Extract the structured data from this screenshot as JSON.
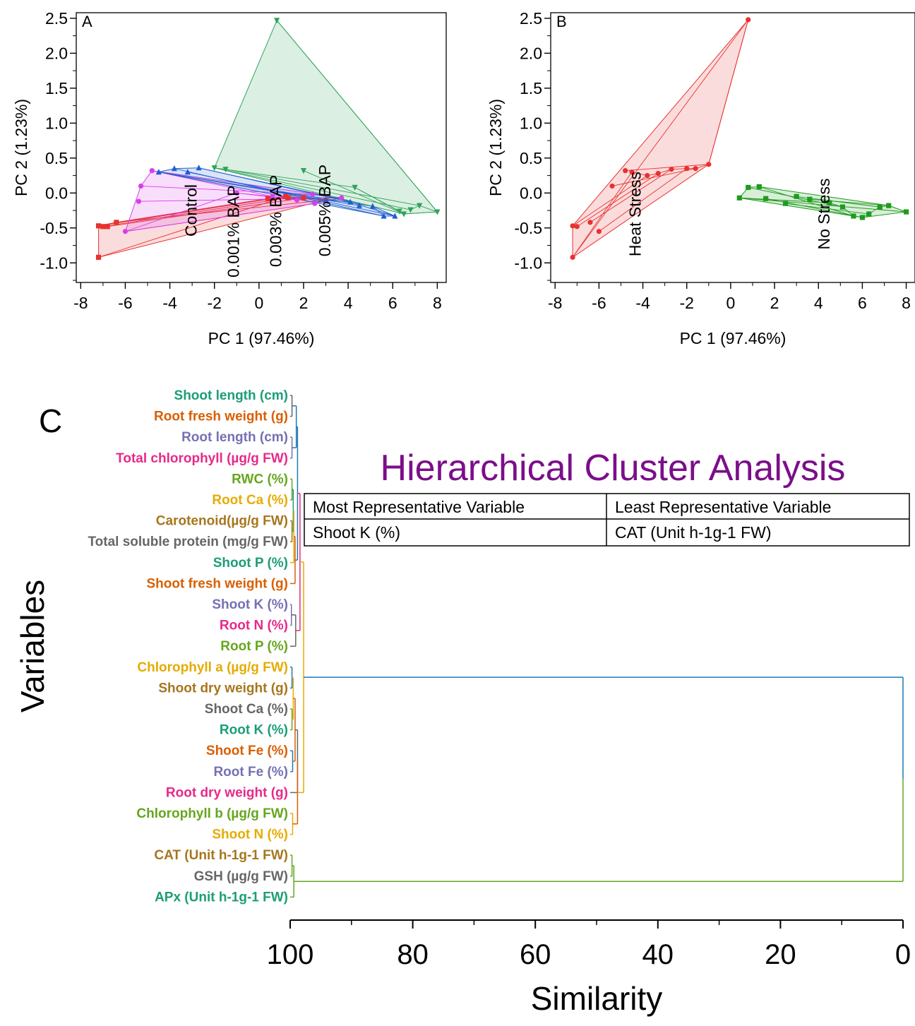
{
  "colors": {
    "control": "#e8312f",
    "bap001": "#d93ee8",
    "bap003": "#1f5fcf",
    "bap005": "#2fa35a",
    "heat": "#e8312f",
    "nostress": "#1e9b1e",
    "title": "#7b0e8a"
  },
  "chart_data": [
    {
      "type": "scatter",
      "panel_label": "A",
      "xlabel": "PC 1 (97.46%)",
      "ylabel": "PC 2 (1.23%)",
      "xlim": [
        -8.2,
        8.4
      ],
      "ylim": [
        -1.28,
        2.58
      ],
      "xticks": [
        "-8",
        "-6",
        "-4",
        "-2",
        "0",
        "2",
        "4",
        "6",
        "8"
      ],
      "xtick_values": [
        -8,
        -6,
        -4,
        -2,
        0,
        2,
        4,
        6,
        8
      ],
      "yticks": [
        "-1.0",
        "-0.5",
        "0.0",
        "0.5",
        "1.0",
        "1.5",
        "2.0",
        "2.5"
      ],
      "ytick_values": [
        -1.0,
        -0.5,
        0.0,
        0.5,
        1.0,
        1.5,
        2.0,
        2.5
      ],
      "grid": false,
      "hull_fill": true,
      "group_labels": [
        {
          "text": "Control",
          "x": -2.8,
          "y": -0.25
        },
        {
          "text": "0.001% BAP",
          "x": -0.9,
          "y": -0.55
        },
        {
          "text": "0.003% BAP",
          "x": 1.0,
          "y": -0.4
        },
        {
          "text": "0.005% BAP",
          "x": 3.2,
          "y": -0.25
        }
      ],
      "series": [
        {
          "name": "Control",
          "color_key": "control",
          "marker": "square",
          "points": [
            [
              -7.2,
              -0.47
            ],
            [
              -7.0,
              -0.48
            ],
            [
              -6.8,
              -0.48
            ],
            [
              -6.4,
              -0.42
            ],
            [
              -7.2,
              -0.92
            ],
            [
              0.4,
              -0.08
            ],
            [
              1.3,
              -0.07
            ],
            [
              2.0,
              -0.07
            ],
            [
              3.0,
              -0.1
            ],
            [
              1.2,
              -0.05
            ]
          ]
        },
        {
          "name": "0.001% BAP",
          "color_key": "bap001",
          "marker": "circle",
          "points": [
            [
              -6.0,
              -0.55
            ],
            [
              -5.4,
              -0.12
            ],
            [
              -5.3,
              0.1
            ],
            [
              -4.8,
              0.32
            ],
            [
              1.7,
              -0.1
            ],
            [
              2.5,
              -0.15
            ],
            [
              3.7,
              -0.07
            ],
            [
              2.4,
              -0.02
            ],
            [
              0.6,
              -0.05
            ],
            [
              -1.0,
              0.0
            ]
          ]
        },
        {
          "name": "0.003% BAP",
          "color_key": "bap003",
          "marker": "triangle-up",
          "points": [
            [
              -4.5,
              0.3
            ],
            [
              -3.8,
              0.35
            ],
            [
              -3.2,
              0.3
            ],
            [
              -2.7,
              0.36
            ],
            [
              4.5,
              -0.18
            ],
            [
              5.1,
              -0.19
            ],
            [
              5.6,
              -0.33
            ],
            [
              6.1,
              -0.33
            ],
            [
              4.1,
              -0.13
            ],
            [
              3.0,
              -0.1
            ]
          ]
        },
        {
          "name": "0.005% BAP",
          "color_key": "bap005",
          "marker": "triangle-down",
          "points": [
            [
              -2.0,
              0.36
            ],
            [
              -1.5,
              0.34
            ],
            [
              0.8,
              2.47
            ],
            [
              2.0,
              0.32
            ],
            [
              6.3,
              -0.26
            ],
            [
              6.8,
              -0.24
            ],
            [
              7.2,
              -0.18
            ],
            [
              8.0,
              -0.27
            ],
            [
              6.5,
              -0.3
            ],
            [
              4.3,
              0.08
            ]
          ]
        }
      ]
    },
    {
      "type": "scatter",
      "panel_label": "B",
      "xlabel": "PC 1 (97.46%)",
      "ylabel": "PC 2 (1.23%)",
      "xlim": [
        -8.2,
        8.4
      ],
      "ylim": [
        -1.28,
        2.58
      ],
      "xticks": [
        "-8",
        "-6",
        "-4",
        "-2",
        "0",
        "2",
        "4",
        "6",
        "8"
      ],
      "xtick_values": [
        -8,
        -6,
        -4,
        -2,
        0,
        2,
        4,
        6,
        8
      ],
      "yticks": [
        "-1.0",
        "-0.5",
        "0.0",
        "0.5",
        "1.0",
        "1.5",
        "2.0",
        "2.5"
      ],
      "ytick_values": [
        -1.0,
        -0.5,
        0.0,
        0.5,
        1.0,
        1.5,
        2.0,
        2.5
      ],
      "grid": false,
      "hull_fill": true,
      "group_labels": [
        {
          "text": "Heat Stress",
          "x": -4.1,
          "y": -0.3
        },
        {
          "text": "No Stress",
          "x": 4.5,
          "y": -0.3
        }
      ],
      "series": [
        {
          "name": "Heat Stress",
          "color_key": "heat",
          "marker": "circle",
          "points": [
            [
              -7.2,
              -0.92
            ],
            [
              -7.2,
              -0.47
            ],
            [
              -7.0,
              -0.48
            ],
            [
              -6.4,
              -0.42
            ],
            [
              -6.0,
              -0.55
            ],
            [
              -5.4,
              0.1
            ],
            [
              -4.8,
              0.32
            ],
            [
              -4.5,
              0.3
            ],
            [
              -3.8,
              0.25
            ],
            [
              -3.3,
              0.28
            ],
            [
              -2.7,
              0.34
            ],
            [
              -2.0,
              0.35
            ],
            [
              -1.6,
              0.35
            ],
            [
              -1.0,
              0.41
            ],
            [
              0.8,
              2.48
            ]
          ]
        },
        {
          "name": "No Stress",
          "color_key": "nostress",
          "marker": "square",
          "points": [
            [
              0.4,
              -0.07
            ],
            [
              0.8,
              0.08
            ],
            [
              1.3,
              0.09
            ],
            [
              1.6,
              -0.08
            ],
            [
              2.5,
              -0.15
            ],
            [
              3.0,
              -0.05
            ],
            [
              3.6,
              -0.09
            ],
            [
              4.5,
              -0.14
            ],
            [
              5.1,
              -0.2
            ],
            [
              5.6,
              -0.33
            ],
            [
              6.0,
              -0.35
            ],
            [
              6.3,
              -0.3
            ],
            [
              6.8,
              -0.2
            ],
            [
              7.2,
              -0.18
            ],
            [
              8.0,
              -0.27
            ]
          ]
        }
      ]
    },
    {
      "type": "dendrogram",
      "panel_label": "C",
      "title": "Hierarchical Cluster Analysis",
      "xlabel": "Similarity",
      "ylabel": "Variables",
      "xlim": [
        100,
        0
      ],
      "xticks": [
        "100",
        "80",
        "60",
        "40",
        "20",
        "0"
      ],
      "xtick_values": [
        100,
        80,
        60,
        40,
        20,
        0
      ],
      "table": {
        "headers": [
          "Most Representative Variable",
          "Least Representative Variable"
        ],
        "rows": [
          [
            "Shoot K (%)",
            "CAT (Unit h-1g-1 FW)"
          ]
        ]
      },
      "leaves": [
        {
          "label": "Shoot length (cm)",
          "color": "#1b9e77"
        },
        {
          "label": "Root fresh weight (g)",
          "color": "#d95f02"
        },
        {
          "label": "Root length (cm)",
          "color": "#7570b3"
        },
        {
          "label": "Total chlorophyll (µg/g FW)",
          "color": "#e7298a"
        },
        {
          "label": "RWC (%)",
          "color": "#66a61e"
        },
        {
          "label": "Root Ca (%)",
          "color": "#e6ab02"
        },
        {
          "label": "Carotenoid(µg/g FW)",
          "color": "#a6761d"
        },
        {
          "label": "Total soluble protein (mg/g FW)",
          "color": "#666666"
        },
        {
          "label": "Shoot P (%)",
          "color": "#1b9e77"
        },
        {
          "label": "Shoot fresh weight (g)",
          "color": "#d95f02"
        },
        {
          "label": "Shoot K (%)",
          "color": "#7570b3"
        },
        {
          "label": "Root N (%)",
          "color": "#e7298a"
        },
        {
          "label": "Root P (%)",
          "color": "#66a61e"
        },
        {
          "label": "Chlorophyll a (µg/g FW)",
          "color": "#e6ab02"
        },
        {
          "label": "Shoot dry weight (g)",
          "color": "#a6761d"
        },
        {
          "label": "Shoot Ca (%)",
          "color": "#666666"
        },
        {
          "label": "Root K (%)",
          "color": "#1b9e77"
        },
        {
          "label": "Shoot Fe (%)",
          "color": "#d95f02"
        },
        {
          "label": "Root Fe (%)",
          "color": "#7570b3"
        },
        {
          "label": "Root dry weight (g)",
          "color": "#e7298a"
        },
        {
          "label": "Chlorophyll b (µg/g FW)",
          "color": "#66a61e"
        },
        {
          "label": "Shoot N (%)",
          "color": "#e6ab02"
        },
        {
          "label": "CAT (Unit h-1g-1 FW)",
          "color": "#a6761d"
        },
        {
          "label": "GSH (µg/g FW)",
          "color": "#666666"
        },
        {
          "label": "APx (Unit h-1g-1 FW)",
          "color": "#1b9e77"
        }
      ],
      "merges": [
        {
          "a": "L0",
          "b": "L1",
          "similarity": 99.7,
          "color": "#666666"
        },
        {
          "a": "L2",
          "b": "L3",
          "similarity": 99.7,
          "color": "#7570b3"
        },
        {
          "a": "L4",
          "b": "L5",
          "similarity": 99.7,
          "color": "#66a61e"
        },
        {
          "a": "L6",
          "b": "L7",
          "similarity": 99.7,
          "color": "#a6761d"
        },
        {
          "a": "L10",
          "b": "L11",
          "similarity": 99.8,
          "color": "#7570b3"
        },
        {
          "a": "M2",
          "b": "M3",
          "similarity": 99.5,
          "color": "#1b9e77"
        },
        {
          "a": "M5",
          "b": "L8",
          "similarity": 99.4,
          "color": "#e6ab02"
        },
        {
          "a": "M6",
          "b": "L9",
          "similarity": 99.2,
          "color": "#d95f02"
        },
        {
          "a": "M4",
          "b": "L12",
          "similarity": 99.1,
          "color": "#666666"
        },
        {
          "a": "M0",
          "b": "M1",
          "similarity": 99.0,
          "color": "#1f78b4"
        },
        {
          "a": "M9",
          "b": "M7",
          "similarity": 98.8,
          "color": "#1f78b4"
        },
        {
          "a": "M10",
          "b": "M8",
          "similarity": 98.4,
          "color": "#e7298a"
        },
        {
          "a": "L13",
          "b": "L14",
          "similarity": 99.7,
          "color": "#1f78b4"
        },
        {
          "a": "L15",
          "b": "L16",
          "similarity": 99.7,
          "color": "#66a61e"
        },
        {
          "a": "M12",
          "b": "M13",
          "similarity": 99.5,
          "color": "#e6ab02"
        },
        {
          "a": "L17",
          "b": "L18",
          "similarity": 99.6,
          "color": "#1f78b4"
        },
        {
          "a": "M14",
          "b": "M15",
          "similarity": 99.2,
          "color": "#d95f02"
        },
        {
          "a": "L20",
          "b": "L21",
          "similarity": 99.6,
          "color": "#e6ab02"
        },
        {
          "a": "M16",
          "b": "L19",
          "similarity": 98.8,
          "color": "#666666"
        },
        {
          "a": "M18",
          "b": "M17",
          "similarity": 98.8,
          "color": "#d95f02"
        },
        {
          "a": "M11",
          "b": "M19",
          "similarity": 97.8,
          "color": "#e6ab02"
        },
        {
          "a": "L22",
          "b": "L23",
          "similarity": 99.7,
          "color": "#66a61e"
        },
        {
          "a": "M21",
          "b": "L24",
          "similarity": 99.4,
          "color": "#66a61e"
        },
        {
          "a": "M20",
          "b": "M22",
          "similarity": 0.0,
          "color": "#1f78b4",
          "color_low": "#66a61e"
        }
      ]
    }
  ]
}
